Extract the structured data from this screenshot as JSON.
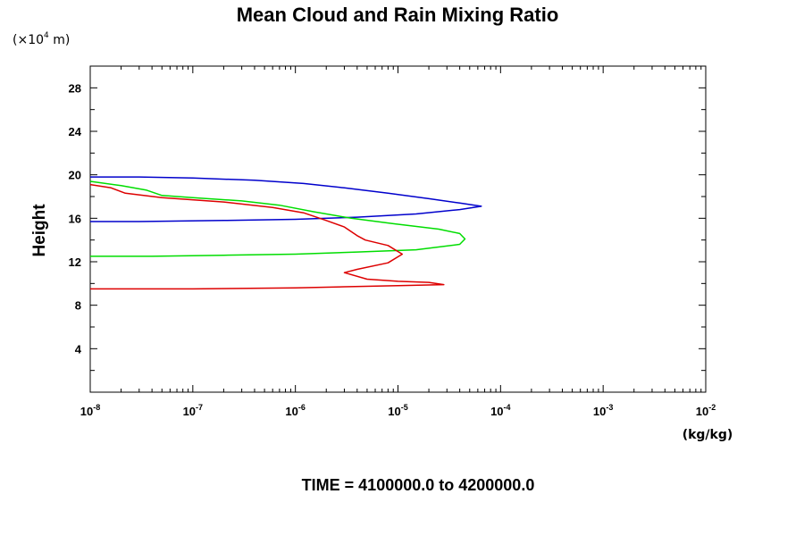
{
  "chart_data": {
    "type": "line",
    "title": "Mean Cloud and Rain Mixing Ratio",
    "ylabel": "Height",
    "yunit_prefix": "(×10",
    "yunit_exp": "4",
    "yunit_suffix": " m)",
    "xunit": "(kg/kg)",
    "bottom_text": "TIME = 4100000.0 to 4200000.0",
    "xscale": "log",
    "xlim": [
      1e-08,
      0.01
    ],
    "ylim": [
      0,
      30
    ],
    "x_ticks": [
      {
        "base": "10",
        "exp": "-8",
        "value": 1e-08
      },
      {
        "base": "10",
        "exp": "-7",
        "value": 1e-07
      },
      {
        "base": "10",
        "exp": "-6",
        "value": 1e-06
      },
      {
        "base": "10",
        "exp": "-5",
        "value": 1e-05
      },
      {
        "base": "10",
        "exp": "-4",
        "value": 0.0001
      },
      {
        "base": "10",
        "exp": "-3",
        "value": 0.001
      },
      {
        "base": "10",
        "exp": "-2",
        "value": 0.01
      }
    ],
    "y_ticks": [
      "4",
      "8",
      "12",
      "16",
      "20",
      "24",
      "28"
    ],
    "grid": false,
    "series": [
      {
        "color": "#0000cc",
        "points": [
          [
            1e-08,
            19.8
          ],
          [
            3e-08,
            19.8
          ],
          [
            1e-07,
            19.7
          ],
          [
            4e-07,
            19.5
          ],
          [
            1.2e-06,
            19.2
          ],
          [
            3e-06,
            18.8
          ],
          [
            8e-06,
            18.3
          ],
          [
            2e-05,
            17.8
          ],
          [
            4e-05,
            17.4
          ],
          [
            6.5e-05,
            17.1
          ],
          [
            4e-05,
            16.8
          ],
          [
            1.5e-05,
            16.4
          ],
          [
            4e-06,
            16.1
          ],
          [
            1e-06,
            15.9
          ],
          [
            2e-07,
            15.8
          ],
          [
            3e-08,
            15.7
          ],
          [
            1e-08,
            15.7
          ]
        ]
      },
      {
        "color": "#00dd00",
        "points": [
          [
            1e-08,
            19.4
          ],
          [
            2e-08,
            19.0
          ],
          [
            3.5e-08,
            18.6
          ],
          [
            5e-08,
            18.1
          ],
          [
            1e-07,
            17.9
          ],
          [
            3e-07,
            17.6
          ],
          [
            7e-07,
            17.2
          ],
          [
            1.5e-06,
            16.6
          ],
          [
            3.5e-06,
            16.0
          ],
          [
            9e-06,
            15.5
          ],
          [
            2.5e-05,
            15.0
          ],
          [
            4e-05,
            14.6
          ],
          [
            4.5e-05,
            14.1
          ],
          [
            4e-05,
            13.6
          ],
          [
            1.5e-05,
            13.1
          ],
          [
            4e-06,
            12.9
          ],
          [
            1e-06,
            12.7
          ],
          [
            2e-07,
            12.6
          ],
          [
            4e-08,
            12.5
          ],
          [
            1e-08,
            12.5
          ]
        ]
      },
      {
        "color": "#dd0000",
        "points": [
          [
            1e-08,
            19.1
          ],
          [
            1.6e-08,
            18.8
          ],
          [
            2.2e-08,
            18.3
          ],
          [
            5e-08,
            17.9
          ],
          [
            2e-07,
            17.5
          ],
          [
            6e-07,
            17.0
          ],
          [
            1.2e-06,
            16.5
          ],
          [
            2e-06,
            15.8
          ],
          [
            3e-06,
            15.2
          ],
          [
            4e-06,
            14.4
          ],
          [
            4.8e-06,
            14.0
          ],
          [
            8e-06,
            13.5
          ],
          [
            1.1e-05,
            12.7
          ],
          [
            8e-06,
            11.9
          ],
          [
            4e-06,
            11.3
          ],
          [
            3e-06,
            11.0
          ],
          [
            5e-06,
            10.4
          ],
          [
            1e-05,
            10.2
          ],
          [
            2e-05,
            10.1
          ],
          [
            2.8e-05,
            9.9
          ],
          [
            1e-05,
            9.8
          ],
          [
            3e-06,
            9.7
          ],
          [
            1e-06,
            9.6
          ],
          [
            1e-07,
            9.5
          ],
          [
            1e-08,
            9.5
          ]
        ]
      }
    ]
  }
}
